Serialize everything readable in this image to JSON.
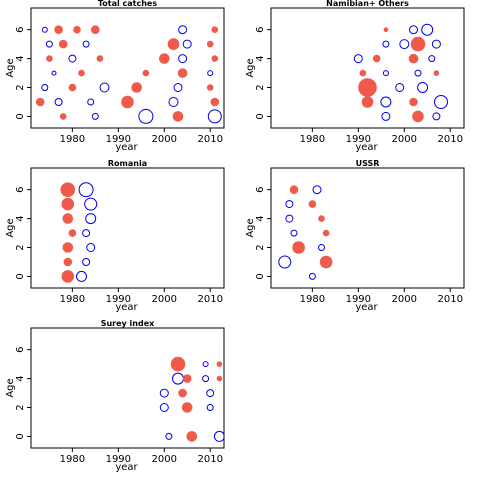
{
  "chart_data": [
    {
      "type": "scatter",
      "title": "Total catches",
      "xlabel": "year",
      "ylabel": "Age",
      "xlim": [
        1971,
        2013
      ],
      "ylim": [
        -0.8,
        7.5
      ],
      "xticks": [
        1980,
        1990,
        2000,
        2010
      ],
      "yticks": [
        0,
        2,
        4,
        6
      ],
      "legend": "none",
      "grid": false,
      "points": [
        {
          "x": 1974,
          "y": 6,
          "r": 2.5,
          "sign": "-"
        },
        {
          "x": 1977,
          "y": 6,
          "r": 4,
          "sign": "+"
        },
        {
          "x": 1981,
          "y": 6,
          "r": 3.5,
          "sign": "+"
        },
        {
          "x": 1985,
          "y": 6,
          "r": 4,
          "sign": "+"
        },
        {
          "x": 2004,
          "y": 6,
          "r": 4,
          "sign": "-"
        },
        {
          "x": 2011,
          "y": 6,
          "r": 3,
          "sign": "+"
        },
        {
          "x": 1975,
          "y": 5,
          "r": 3,
          "sign": "-"
        },
        {
          "x": 1978,
          "y": 5,
          "r": 4,
          "sign": "+"
        },
        {
          "x": 1983,
          "y": 5,
          "r": 3,
          "sign": "-"
        },
        {
          "x": 2002,
          "y": 5,
          "r": 5.5,
          "sign": "+"
        },
        {
          "x": 2005,
          "y": 5,
          "r": 4,
          "sign": "-"
        },
        {
          "x": 2010,
          "y": 5,
          "r": 3,
          "sign": "+"
        },
        {
          "x": 1975,
          "y": 4,
          "r": 3,
          "sign": "+"
        },
        {
          "x": 1980,
          "y": 4,
          "r": 3.5,
          "sign": "-"
        },
        {
          "x": 1986,
          "y": 4,
          "r": 3,
          "sign": "+"
        },
        {
          "x": 2000,
          "y": 4,
          "r": 5,
          "sign": "+"
        },
        {
          "x": 2004,
          "y": 4,
          "r": 4,
          "sign": "-"
        },
        {
          "x": 2011,
          "y": 4,
          "r": 3,
          "sign": "+"
        },
        {
          "x": 1976,
          "y": 3,
          "r": 2,
          "sign": "-"
        },
        {
          "x": 1982,
          "y": 3,
          "r": 3,
          "sign": "+"
        },
        {
          "x": 1996,
          "y": 3,
          "r": 3,
          "sign": "+"
        },
        {
          "x": 2004,
          "y": 3,
          "r": 4.5,
          "sign": "+"
        },
        {
          "x": 2010,
          "y": 3,
          "r": 2.5,
          "sign": "-"
        },
        {
          "x": 1974,
          "y": 2,
          "r": 3,
          "sign": "-"
        },
        {
          "x": 1980,
          "y": 2,
          "r": 3.5,
          "sign": "+"
        },
        {
          "x": 1987,
          "y": 2,
          "r": 4.5,
          "sign": "-"
        },
        {
          "x": 1994,
          "y": 2,
          "r": 5,
          "sign": "+"
        },
        {
          "x": 2003,
          "y": 2,
          "r": 4,
          "sign": "-"
        },
        {
          "x": 2010,
          "y": 2,
          "r": 3,
          "sign": "+"
        },
        {
          "x": 1973,
          "y": 1,
          "r": 4,
          "sign": "+"
        },
        {
          "x": 1977,
          "y": 1,
          "r": 3.5,
          "sign": "-"
        },
        {
          "x": 1984,
          "y": 1,
          "r": 3,
          "sign": "-"
        },
        {
          "x": 1992,
          "y": 1,
          "r": 6,
          "sign": "+"
        },
        {
          "x": 2002,
          "y": 1,
          "r": 4.5,
          "sign": "-"
        },
        {
          "x": 2011,
          "y": 1,
          "r": 4,
          "sign": "+"
        },
        {
          "x": 1978,
          "y": 0,
          "r": 3,
          "sign": "+"
        },
        {
          "x": 1985,
          "y": 0,
          "r": 3,
          "sign": "-"
        },
        {
          "x": 1996,
          "y": 0,
          "r": 7,
          "sign": "-"
        },
        {
          "x": 2003,
          "y": 0,
          "r": 5,
          "sign": "+"
        },
        {
          "x": 2011,
          "y": 0,
          "r": 6.5,
          "sign": "-"
        }
      ]
    },
    {
      "type": "scatter",
      "title": "Namibian+ Others",
      "xlabel": "year",
      "ylabel": "Age",
      "xlim": [
        1971,
        2013
      ],
      "ylim": [
        -0.8,
        7.5
      ],
      "xticks": [
        1980,
        1990,
        2000,
        2010
      ],
      "yticks": [
        0,
        2,
        4,
        6
      ],
      "legend": "none",
      "grid": false,
      "points": [
        {
          "x": 1996,
          "y": 6,
          "r": 2,
          "sign": "+"
        },
        {
          "x": 2002,
          "y": 6,
          "r": 4,
          "sign": "-"
        },
        {
          "x": 2005,
          "y": 6,
          "r": 5.5,
          "sign": "-"
        },
        {
          "x": 1996,
          "y": 5,
          "r": 3,
          "sign": "-"
        },
        {
          "x": 2000,
          "y": 5,
          "r": 4.5,
          "sign": "-"
        },
        {
          "x": 2003,
          "y": 5,
          "r": 7,
          "sign": "+"
        },
        {
          "x": 2007,
          "y": 5,
          "r": 4,
          "sign": "-"
        },
        {
          "x": 1990,
          "y": 4,
          "r": 4,
          "sign": "-"
        },
        {
          "x": 1994,
          "y": 4,
          "r": 3.5,
          "sign": "+"
        },
        {
          "x": 2002,
          "y": 4,
          "r": 4.5,
          "sign": "+"
        },
        {
          "x": 2006,
          "y": 4,
          "r": 3,
          "sign": "-"
        },
        {
          "x": 1991,
          "y": 3,
          "r": 3,
          "sign": "+"
        },
        {
          "x": 1996,
          "y": 3,
          "r": 2.5,
          "sign": "-"
        },
        {
          "x": 2003,
          "y": 3,
          "r": 3,
          "sign": "-"
        },
        {
          "x": 2007,
          "y": 3,
          "r": 2.5,
          "sign": "+"
        },
        {
          "x": 1992,
          "y": 2,
          "r": 9,
          "sign": "+"
        },
        {
          "x": 1999,
          "y": 2,
          "r": 4,
          "sign": "-"
        },
        {
          "x": 2004,
          "y": 2,
          "r": 5,
          "sign": "-"
        },
        {
          "x": 1992,
          "y": 1,
          "r": 5.5,
          "sign": "+"
        },
        {
          "x": 1996,
          "y": 1,
          "r": 5,
          "sign": "-"
        },
        {
          "x": 2002,
          "y": 1,
          "r": 4,
          "sign": "+"
        },
        {
          "x": 2008,
          "y": 1,
          "r": 6.5,
          "sign": "-"
        },
        {
          "x": 1996,
          "y": 0,
          "r": 4,
          "sign": "-"
        },
        {
          "x": 2003,
          "y": 0,
          "r": 5.5,
          "sign": "+"
        },
        {
          "x": 2007,
          "y": 0,
          "r": 3.5,
          "sign": "-"
        }
      ]
    },
    {
      "type": "scatter",
      "title": "Romania",
      "xlabel": "year",
      "ylabel": "Age",
      "xlim": [
        1971,
        2013
      ],
      "ylim": [
        -0.8,
        7.5
      ],
      "xticks": [
        1980,
        1990,
        2000,
        2010
      ],
      "yticks": [
        0,
        2,
        4,
        6
      ],
      "legend": "none",
      "grid": false,
      "points": [
        {
          "x": 1979,
          "y": 6,
          "r": 7,
          "sign": "+"
        },
        {
          "x": 1983,
          "y": 6,
          "r": 7,
          "sign": "-"
        },
        {
          "x": 1979,
          "y": 5,
          "r": 6,
          "sign": "+"
        },
        {
          "x": 1984,
          "y": 5,
          "r": 6,
          "sign": "-"
        },
        {
          "x": 1979,
          "y": 4,
          "r": 5,
          "sign": "+"
        },
        {
          "x": 1984,
          "y": 4,
          "r": 5,
          "sign": "-"
        },
        {
          "x": 1980,
          "y": 3,
          "r": 3.5,
          "sign": "+"
        },
        {
          "x": 1983,
          "y": 3,
          "r": 3.5,
          "sign": "-"
        },
        {
          "x": 1979,
          "y": 2,
          "r": 5,
          "sign": "+"
        },
        {
          "x": 1984,
          "y": 2,
          "r": 4,
          "sign": "-"
        },
        {
          "x": 1979,
          "y": 1,
          "r": 4,
          "sign": "+"
        },
        {
          "x": 1983,
          "y": 1,
          "r": 3.5,
          "sign": "-"
        },
        {
          "x": 1979,
          "y": 0,
          "r": 6,
          "sign": "+"
        },
        {
          "x": 1982,
          "y": 0,
          "r": 5,
          "sign": "-"
        }
      ]
    },
    {
      "type": "scatter",
      "title": "USSR",
      "xlabel": "year",
      "ylabel": "Age",
      "xlim": [
        1971,
        2013
      ],
      "ylim": [
        -0.8,
        7.5
      ],
      "xticks": [
        1980,
        1990,
        2000,
        2010
      ],
      "yticks": [
        0,
        2,
        4,
        6
      ],
      "legend": "none",
      "grid": false,
      "points": [
        {
          "x": 1976,
          "y": 6,
          "r": 4,
          "sign": "+"
        },
        {
          "x": 1981,
          "y": 6,
          "r": 4,
          "sign": "-"
        },
        {
          "x": 1975,
          "y": 5,
          "r": 3.5,
          "sign": "-"
        },
        {
          "x": 1980,
          "y": 5,
          "r": 3.5,
          "sign": "+"
        },
        {
          "x": 1975,
          "y": 4,
          "r": 3.5,
          "sign": "-"
        },
        {
          "x": 1982,
          "y": 4,
          "r": 3,
          "sign": "+"
        },
        {
          "x": 1976,
          "y": 3,
          "r": 3,
          "sign": "-"
        },
        {
          "x": 1983,
          "y": 3,
          "r": 3,
          "sign": "+"
        },
        {
          "x": 1977,
          "y": 2,
          "r": 6,
          "sign": "+"
        },
        {
          "x": 1982,
          "y": 2,
          "r": 3,
          "sign": "-"
        },
        {
          "x": 1974,
          "y": 1,
          "r": 6,
          "sign": "-"
        },
        {
          "x": 1983,
          "y": 1,
          "r": 6,
          "sign": "+"
        },
        {
          "x": 1980,
          "y": 0,
          "r": 3,
          "sign": "-"
        }
      ]
    },
    {
      "type": "scatter",
      "title": "Surey index",
      "xlabel": "year",
      "ylabel": "Age",
      "xlim": [
        1971,
        2013
      ],
      "ylim": [
        -0.8,
        7.5
      ],
      "xticks": [
        1980,
        1990,
        2000,
        2010
      ],
      "yticks": [
        0,
        2,
        4,
        6
      ],
      "legend": "none",
      "grid": false,
      "points": [
        {
          "x": 2003,
          "y": 5,
          "r": 7,
          "sign": "+"
        },
        {
          "x": 2009,
          "y": 5,
          "r": 2.5,
          "sign": "-"
        },
        {
          "x": 2012,
          "y": 5,
          "r": 2.5,
          "sign": "+"
        },
        {
          "x": 2003,
          "y": 4,
          "r": 5.5,
          "sign": "-"
        },
        {
          "x": 2005,
          "y": 4,
          "r": 4,
          "sign": "+"
        },
        {
          "x": 2009,
          "y": 4,
          "r": 3,
          "sign": "-"
        },
        {
          "x": 2012,
          "y": 4,
          "r": 2.5,
          "sign": "+"
        },
        {
          "x": 2000,
          "y": 3,
          "r": 4,
          "sign": "-"
        },
        {
          "x": 2004,
          "y": 3,
          "r": 4,
          "sign": "+"
        },
        {
          "x": 2010,
          "y": 3,
          "r": 3.5,
          "sign": "-"
        },
        {
          "x": 2000,
          "y": 2,
          "r": 4,
          "sign": "-"
        },
        {
          "x": 2005,
          "y": 2,
          "r": 5,
          "sign": "+"
        },
        {
          "x": 2010,
          "y": 2,
          "r": 3,
          "sign": "-"
        },
        {
          "x": 2001,
          "y": 0,
          "r": 3,
          "sign": "-"
        },
        {
          "x": 2006,
          "y": 0,
          "r": 5,
          "sign": "+"
        },
        {
          "x": 2012,
          "y": 0,
          "r": 5,
          "sign": "-"
        }
      ]
    }
  ],
  "colors": {
    "positive": "#ef5a4a",
    "negative": "#0000ee"
  }
}
